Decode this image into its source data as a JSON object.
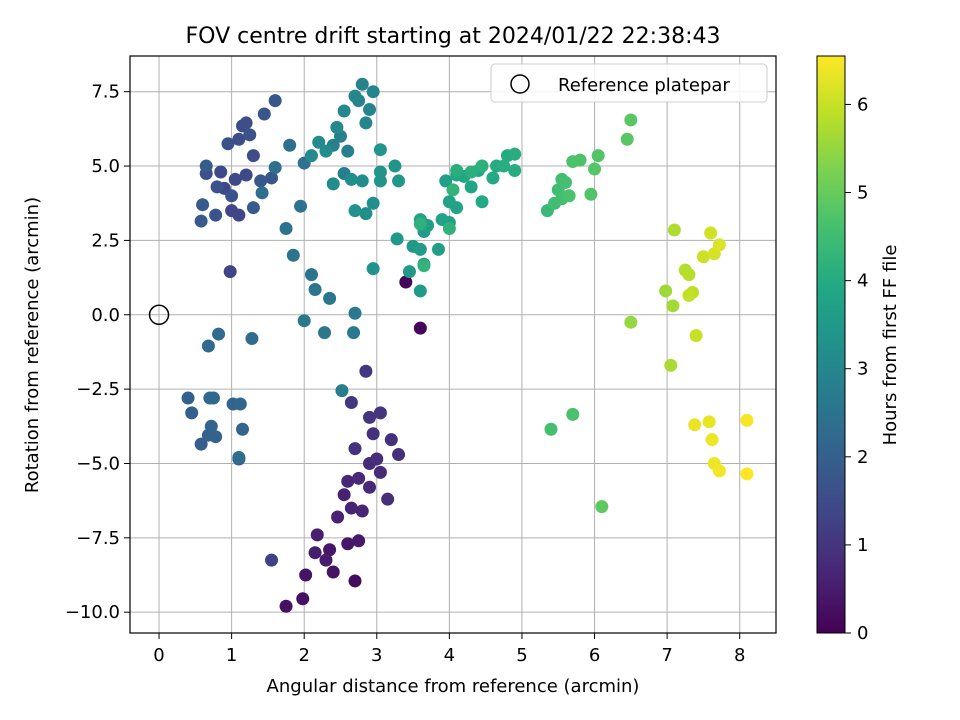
{
  "chart_data": {
    "type": "scatter",
    "title": "FOV centre drift starting at 2024/01/22 22:38:43",
    "xlabel": "Angular distance from reference (arcmin)",
    "ylabel": "Rotation from reference (arcmin)",
    "xlim": [
      -0.4,
      8.5
    ],
    "ylim": [
      -10.7,
      8.7
    ],
    "xticks": [
      0,
      1,
      2,
      3,
      4,
      5,
      6,
      7,
      8
    ],
    "xtick_labels": [
      "0",
      "1",
      "2",
      "3",
      "4",
      "5",
      "6",
      "7",
      "8"
    ],
    "yticks": [
      -10.0,
      -7.5,
      -5.0,
      -2.5,
      0.0,
      2.5,
      5.0,
      7.5
    ],
    "ytick_labels": [
      "−10.0",
      "−7.5",
      "−5.0",
      "−2.5",
      "0.0",
      "2.5",
      "5.0",
      "7.5"
    ],
    "grid": true,
    "colormap": "viridis",
    "colorbar": {
      "label": "Hours from first FF file",
      "range": [
        0,
        6.55
      ],
      "ticks": [
        0,
        1,
        2,
        3,
        4,
        5,
        6
      ],
      "tick_labels": [
        "0",
        "1",
        "2",
        "3",
        "4",
        "5",
        "6"
      ]
    },
    "legend": {
      "placement": "top-right",
      "entries": [
        "Reference platepar"
      ]
    },
    "reference_point": {
      "name": "Reference platepar",
      "x": 0,
      "y": 0,
      "marker": "open-circle"
    },
    "points": [
      {
        "x": 3.4,
        "y": 1.1,
        "h": 0.05
      },
      {
        "x": 3.6,
        "y": -0.45,
        "h": 0.1
      },
      {
        "x": 2.7,
        "y": -8.95,
        "h": 0.2
      },
      {
        "x": 1.75,
        "y": -9.8,
        "h": 0.3
      },
      {
        "x": 1.98,
        "y": -9.55,
        "h": 0.3
      },
      {
        "x": 2.02,
        "y": -8.75,
        "h": 0.35
      },
      {
        "x": 2.4,
        "y": -8.65,
        "h": 0.35
      },
      {
        "x": 2.35,
        "y": -7.9,
        "h": 0.4
      },
      {
        "x": 2.6,
        "y": -7.7,
        "h": 0.4
      },
      {
        "x": 2.75,
        "y": -7.6,
        "h": 0.45
      },
      {
        "x": 2.15,
        "y": -8.0,
        "h": 0.5
      },
      {
        "x": 2.3,
        "y": -8.25,
        "h": 0.5
      },
      {
        "x": 2.18,
        "y": -7.4,
        "h": 0.55
      },
      {
        "x": 2.46,
        "y": -6.8,
        "h": 0.6
      },
      {
        "x": 2.55,
        "y": -6.05,
        "h": 0.6
      },
      {
        "x": 2.65,
        "y": -6.5,
        "h": 0.65
      },
      {
        "x": 2.8,
        "y": -6.6,
        "h": 0.7
      },
      {
        "x": 2.6,
        "y": -5.6,
        "h": 0.7
      },
      {
        "x": 2.75,
        "y": -5.5,
        "h": 0.75
      },
      {
        "x": 2.9,
        "y": -5.8,
        "h": 0.75
      },
      {
        "x": 3.05,
        "y": -5.3,
        "h": 0.8
      },
      {
        "x": 2.9,
        "y": -5.0,
        "h": 0.8
      },
      {
        "x": 3.0,
        "y": -4.85,
        "h": 0.85
      },
      {
        "x": 3.15,
        "y": -6.2,
        "h": 0.85
      },
      {
        "x": 3.3,
        "y": -4.7,
        "h": 0.9
      },
      {
        "x": 3.2,
        "y": -4.2,
        "h": 0.9
      },
      {
        "x": 2.95,
        "y": -4.0,
        "h": 0.95
      },
      {
        "x": 2.7,
        "y": -4.5,
        "h": 0.95
      },
      {
        "x": 3.05,
        "y": -3.3,
        "h": 1.0
      },
      {
        "x": 2.9,
        "y": -3.45,
        "h": 1.0
      },
      {
        "x": 2.85,
        "y": -1.9,
        "h": 1.05
      },
      {
        "x": 2.65,
        "y": -2.95,
        "h": 1.05
      },
      {
        "x": 1.55,
        "y": -8.25,
        "h": 1.2
      },
      {
        "x": 0.98,
        "y": 1.45,
        "h": 1.3
      },
      {
        "x": 1.0,
        "y": 3.5,
        "h": 1.3
      },
      {
        "x": 1.1,
        "y": 3.35,
        "h": 1.35
      },
      {
        "x": 0.85,
        "y": 4.8,
        "h": 1.4
      },
      {
        "x": 0.9,
        "y": 4.25,
        "h": 1.4
      },
      {
        "x": 1.05,
        "y": 4.55,
        "h": 1.45
      },
      {
        "x": 1.2,
        "y": 4.7,
        "h": 1.45
      },
      {
        "x": 1.3,
        "y": 5.35,
        "h": 1.5
      },
      {
        "x": 1.15,
        "y": 6.35,
        "h": 1.5
      },
      {
        "x": 1.2,
        "y": 6.45,
        "h": 1.55
      },
      {
        "x": 1.1,
        "y": 5.9,
        "h": 1.55
      },
      {
        "x": 0.95,
        "y": 5.75,
        "h": 1.6
      },
      {
        "x": 0.65,
        "y": 4.75,
        "h": 1.6
      },
      {
        "x": 0.8,
        "y": 4.3,
        "h": 1.65
      },
      {
        "x": 1.0,
        "y": 4.0,
        "h": 1.65
      },
      {
        "x": 0.78,
        "y": 3.35,
        "h": 1.7
      },
      {
        "x": 1.25,
        "y": 6.05,
        "h": 1.7
      },
      {
        "x": 1.6,
        "y": 7.2,
        "h": 1.75
      },
      {
        "x": 1.45,
        "y": 6.75,
        "h": 1.75
      },
      {
        "x": 1.4,
        "y": 4.5,
        "h": 1.8
      },
      {
        "x": 1.55,
        "y": 4.6,
        "h": 1.8
      },
      {
        "x": 0.6,
        "y": 3.7,
        "h": 1.85
      },
      {
        "x": 0.58,
        "y": 3.15,
        "h": 1.85
      },
      {
        "x": 1.3,
        "y": 3.6,
        "h": 1.9
      },
      {
        "x": 0.65,
        "y": 5.0,
        "h": 1.9
      },
      {
        "x": 1.1,
        "y": -4.85,
        "h": 1.95
      },
      {
        "x": 0.58,
        "y": -4.35,
        "h": 1.95
      },
      {
        "x": 0.45,
        "y": -3.3,
        "h": 2.0
      },
      {
        "x": 0.4,
        "y": -2.8,
        "h": 2.0
      },
      {
        "x": 0.68,
        "y": -4.05,
        "h": 2.05
      },
      {
        "x": 0.78,
        "y": -4.1,
        "h": 2.05
      },
      {
        "x": 0.72,
        "y": -3.75,
        "h": 2.1
      },
      {
        "x": 1.02,
        "y": -3.0,
        "h": 2.1
      },
      {
        "x": 1.12,
        "y": -3.0,
        "h": 2.15
      },
      {
        "x": 1.15,
        "y": -3.85,
        "h": 2.15
      },
      {
        "x": 0.75,
        "y": -2.8,
        "h": 2.2
      },
      {
        "x": 0.7,
        "y": -2.8,
        "h": 2.2
      },
      {
        "x": 0.82,
        "y": -0.65,
        "h": 2.25
      },
      {
        "x": 0.68,
        "y": -1.05,
        "h": 2.25
      },
      {
        "x": 1.28,
        "y": -0.8,
        "h": 2.3
      },
      {
        "x": 1.1,
        "y": -4.8,
        "h": 2.3
      },
      {
        "x": 1.42,
        "y": 4.1,
        "h": 2.35
      },
      {
        "x": 1.6,
        "y": 4.95,
        "h": 2.35
      },
      {
        "x": 1.8,
        "y": 5.7,
        "h": 2.4
      },
      {
        "x": 2.0,
        "y": 5.1,
        "h": 2.4
      },
      {
        "x": 1.95,
        "y": 3.65,
        "h": 2.45
      },
      {
        "x": 1.75,
        "y": 2.9,
        "h": 2.45
      },
      {
        "x": 1.85,
        "y": 2.0,
        "h": 2.5
      },
      {
        "x": 2.1,
        "y": 1.35,
        "h": 2.5
      },
      {
        "x": 2.15,
        "y": 0.85,
        "h": 2.55
      },
      {
        "x": 2.35,
        "y": 0.55,
        "h": 2.55
      },
      {
        "x": 2.0,
        "y": -0.2,
        "h": 2.6
      },
      {
        "x": 2.28,
        "y": -0.6,
        "h": 2.6
      },
      {
        "x": 2.68,
        "y": -0.6,
        "h": 2.65
      },
      {
        "x": 2.7,
        "y": 0.05,
        "h": 2.65
      },
      {
        "x": 2.52,
        "y": -2.55,
        "h": 2.7
      },
      {
        "x": 2.55,
        "y": 4.75,
        "h": 2.75
      },
      {
        "x": 2.6,
        "y": 5.5,
        "h": 2.8
      },
      {
        "x": 2.4,
        "y": 5.7,
        "h": 2.8
      },
      {
        "x": 2.5,
        "y": 6.0,
        "h": 2.85
      },
      {
        "x": 2.75,
        "y": 7.2,
        "h": 2.9
      },
      {
        "x": 2.8,
        "y": 7.75,
        "h": 2.9
      },
      {
        "x": 2.95,
        "y": 7.5,
        "h": 2.95
      },
      {
        "x": 2.9,
        "y": 6.9,
        "h": 2.95
      },
      {
        "x": 2.85,
        "y": 6.45,
        "h": 3.0
      },
      {
        "x": 2.7,
        "y": 7.35,
        "h": 3.0
      },
      {
        "x": 2.55,
        "y": 6.85,
        "h": 3.05
      },
      {
        "x": 2.45,
        "y": 6.3,
        "h": 3.05
      },
      {
        "x": 2.2,
        "y": 5.8,
        "h": 3.1
      },
      {
        "x": 2.1,
        "y": 5.35,
        "h": 3.1
      },
      {
        "x": 2.3,
        "y": 5.5,
        "h": 3.15
      },
      {
        "x": 2.4,
        "y": 4.4,
        "h": 3.15
      },
      {
        "x": 2.65,
        "y": 4.55,
        "h": 3.2
      },
      {
        "x": 2.8,
        "y": 4.5,
        "h": 3.2
      },
      {
        "x": 2.95,
        "y": 3.75,
        "h": 3.25
      },
      {
        "x": 2.85,
        "y": 3.4,
        "h": 3.25
      },
      {
        "x": 2.7,
        "y": 3.5,
        "h": 3.3
      },
      {
        "x": 2.95,
        "y": 1.55,
        "h": 3.3
      },
      {
        "x": 3.05,
        "y": 5.55,
        "h": 3.35
      },
      {
        "x": 3.05,
        "y": 4.8,
        "h": 3.35
      },
      {
        "x": 3.05,
        "y": 4.5,
        "h": 3.4
      },
      {
        "x": 3.25,
        "y": 5.0,
        "h": 3.4
      },
      {
        "x": 3.3,
        "y": 4.5,
        "h": 3.45
      },
      {
        "x": 3.28,
        "y": 2.55,
        "h": 3.45
      },
      {
        "x": 3.5,
        "y": 2.3,
        "h": 3.5
      },
      {
        "x": 3.45,
        "y": 1.45,
        "h": 3.5
      },
      {
        "x": 3.6,
        "y": 0.8,
        "h": 3.55
      },
      {
        "x": 3.65,
        "y": 1.7,
        "h": 3.55
      },
      {
        "x": 3.6,
        "y": 2.2,
        "h": 3.6
      },
      {
        "x": 3.65,
        "y": 2.8,
        "h": 3.6
      },
      {
        "x": 3.7,
        "y": 3.0,
        "h": 3.65
      },
      {
        "x": 3.85,
        "y": 2.2,
        "h": 3.65
      },
      {
        "x": 4.0,
        "y": 3.1,
        "h": 3.7
      },
      {
        "x": 3.95,
        "y": 4.5,
        "h": 3.7
      },
      {
        "x": 3.6,
        "y": 3.2,
        "h": 3.75
      },
      {
        "x": 3.9,
        "y": 3.2,
        "h": 3.75
      },
      {
        "x": 4.0,
        "y": 3.8,
        "h": 3.8
      },
      {
        "x": 4.1,
        "y": 3.6,
        "h": 3.8
      },
      {
        "x": 4.1,
        "y": 4.7,
        "h": 3.85
      },
      {
        "x": 4.3,
        "y": 4.3,
        "h": 3.85
      },
      {
        "x": 4.2,
        "y": 4.65,
        "h": 3.9
      },
      {
        "x": 4.4,
        "y": 4.85,
        "h": 3.9
      },
      {
        "x": 4.45,
        "y": 3.8,
        "h": 3.95
      },
      {
        "x": 4.6,
        "y": 4.6,
        "h": 3.95
      },
      {
        "x": 4.65,
        "y": 5.0,
        "h": 4.0
      },
      {
        "x": 4.8,
        "y": 5.35,
        "h": 4.0
      },
      {
        "x": 4.9,
        "y": 5.4,
        "h": 4.05
      },
      {
        "x": 4.9,
        "y": 4.85,
        "h": 4.05
      },
      {
        "x": 4.75,
        "y": 5.0,
        "h": 4.1
      },
      {
        "x": 4.1,
        "y": 4.85,
        "h": 4.1
      },
      {
        "x": 4.3,
        "y": 4.8,
        "h": 4.15
      },
      {
        "x": 4.45,
        "y": 5.0,
        "h": 4.15
      },
      {
        "x": 4.0,
        "y": 2.9,
        "h": 4.2
      },
      {
        "x": 3.6,
        "y": 3.05,
        "h": 4.2
      },
      {
        "x": 3.65,
        "y": 1.65,
        "h": 4.25
      },
      {
        "x": 4.05,
        "y": 4.2,
        "h": 4.25
      },
      {
        "x": 5.35,
        "y": 3.5,
        "h": 4.4
      },
      {
        "x": 5.45,
        "y": 3.75,
        "h": 4.5
      },
      {
        "x": 5.5,
        "y": 4.2,
        "h": 4.5
      },
      {
        "x": 5.55,
        "y": 4.55,
        "h": 4.55
      },
      {
        "x": 5.6,
        "y": 4.45,
        "h": 4.6
      },
      {
        "x": 5.55,
        "y": 3.9,
        "h": 4.6
      },
      {
        "x": 5.65,
        "y": 4.0,
        "h": 4.65
      },
      {
        "x": 5.7,
        "y": 5.15,
        "h": 4.7
      },
      {
        "x": 5.8,
        "y": 5.2,
        "h": 4.7
      },
      {
        "x": 5.95,
        "y": 4.05,
        "h": 4.75
      },
      {
        "x": 6.05,
        "y": 5.35,
        "h": 4.75
      },
      {
        "x": 6.0,
        "y": 4.9,
        "h": 4.8
      },
      {
        "x": 6.45,
        "y": 5.9,
        "h": 4.85
      },
      {
        "x": 6.5,
        "y": 6.55,
        "h": 4.85
      },
      {
        "x": 5.4,
        "y": -3.85,
        "h": 4.6
      },
      {
        "x": 5.7,
        "y": -3.35,
        "h": 4.65
      },
      {
        "x": 6.1,
        "y": -6.45,
        "h": 4.9
      },
      {
        "x": 6.5,
        "y": -0.25,
        "h": 5.5
      },
      {
        "x": 6.98,
        "y": 0.8,
        "h": 5.6
      },
      {
        "x": 7.08,
        "y": 0.3,
        "h": 5.65
      },
      {
        "x": 7.05,
        "y": -1.7,
        "h": 5.7
      },
      {
        "x": 7.1,
        "y": 2.85,
        "h": 5.75
      },
      {
        "x": 7.25,
        "y": 1.5,
        "h": 5.8
      },
      {
        "x": 7.3,
        "y": 1.35,
        "h": 5.85
      },
      {
        "x": 7.35,
        "y": 0.75,
        "h": 5.9
      },
      {
        "x": 7.3,
        "y": 0.65,
        "h": 5.95
      },
      {
        "x": 7.4,
        "y": -0.7,
        "h": 6.0
      },
      {
        "x": 7.5,
        "y": 1.95,
        "h": 6.05
      },
      {
        "x": 7.6,
        "y": 2.75,
        "h": 6.1
      },
      {
        "x": 7.65,
        "y": 2.05,
        "h": 6.15
      },
      {
        "x": 7.72,
        "y": 2.35,
        "h": 6.2
      },
      {
        "x": 7.38,
        "y": -3.7,
        "h": 6.35
      },
      {
        "x": 7.58,
        "y": -3.6,
        "h": 6.35
      },
      {
        "x": 7.62,
        "y": -4.2,
        "h": 6.4
      },
      {
        "x": 7.65,
        "y": -5.0,
        "h": 6.4
      },
      {
        "x": 7.72,
        "y": -5.25,
        "h": 6.45
      },
      {
        "x": 8.1,
        "y": -3.55,
        "h": 6.5
      },
      {
        "x": 8.1,
        "y": -5.35,
        "h": 6.55
      }
    ]
  }
}
